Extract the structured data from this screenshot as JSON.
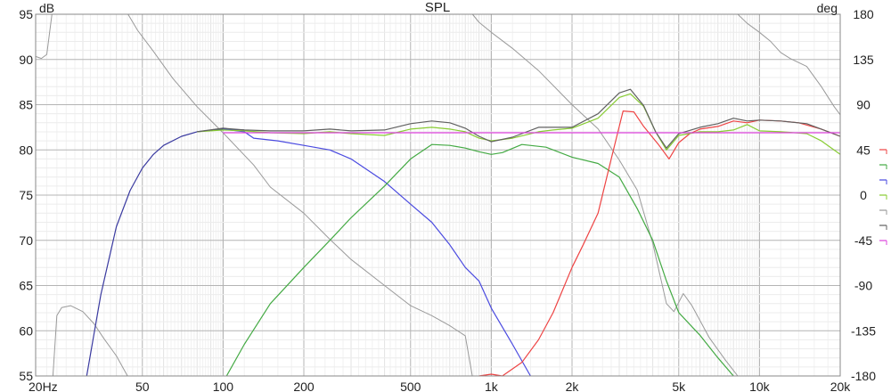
{
  "chart_data": {
    "type": "line",
    "title": "SPL",
    "ylabel_left": "dB",
    "ylabel_right": "deg",
    "x_scale": "log",
    "xlim": [
      20,
      20000
    ],
    "ylim_left": [
      55,
      95
    ],
    "ylim_right": [
      -180,
      180
    ],
    "grid": true,
    "legend_position": "right",
    "x_tick_labels": [
      {
        "v": 20,
        "t": "20Hz"
      },
      {
        "v": 50,
        "t": "50"
      },
      {
        "v": 100,
        "t": "100"
      },
      {
        "v": 200,
        "t": "200"
      },
      {
        "v": 500,
        "t": "500"
      },
      {
        "v": 1000,
        "t": "1k"
      },
      {
        "v": 2000,
        "t": "2k"
      },
      {
        "v": 5000,
        "t": "5k"
      },
      {
        "v": 10000,
        "t": "10k"
      },
      {
        "v": 20000,
        "t": "20k"
      }
    ],
    "y_left_ticks": [
      "95",
      "90",
      "85",
      "80",
      "75",
      "70",
      "65",
      "60",
      "55"
    ],
    "y_right_ticks": [
      "180",
      "135",
      "90",
      "45",
      "0",
      "-45",
      "-90",
      "-135",
      "-180"
    ],
    "series": [
      {
        "color": "#9a9a9a",
        "axis": "right",
        "points": [
          [
            20,
            138
          ],
          [
            21,
            136
          ],
          [
            22,
            140
          ],
          [
            23,
            180
          ],
          [
            23.2,
            -180
          ],
          [
            24,
            -120
          ],
          [
            25,
            -112
          ],
          [
            27,
            -110
          ],
          [
            30,
            -116
          ],
          [
            33,
            -128
          ],
          [
            36,
            -143
          ],
          [
            40,
            -160
          ],
          [
            44,
            -180
          ],
          [
            44.2,
            180
          ],
          [
            48,
            164
          ],
          [
            55,
            143
          ],
          [
            65,
            116
          ],
          [
            80,
            88
          ],
          [
            100,
            62
          ],
          [
            130,
            30
          ],
          [
            150,
            8
          ],
          [
            200,
            -18
          ],
          [
            250,
            -44
          ],
          [
            300,
            -64
          ],
          [
            400,
            -90
          ],
          [
            500,
            -110
          ],
          [
            600,
            -120
          ],
          [
            700,
            -130
          ],
          [
            800,
            -140
          ],
          [
            850,
            -180
          ],
          [
            851,
            180
          ],
          [
            900,
            172
          ],
          [
            1000,
            162
          ],
          [
            1200,
            146
          ],
          [
            1500,
            124
          ],
          [
            2000,
            90
          ],
          [
            2500,
            66
          ],
          [
            3000,
            35
          ],
          [
            3500,
            5
          ],
          [
            4000,
            -48
          ],
          [
            4500,
            -108
          ],
          [
            4800,
            -116
          ],
          [
            5200,
            -98
          ],
          [
            5600,
            -110
          ],
          [
            6500,
            -142
          ],
          [
            7500,
            -165
          ],
          [
            8300,
            -180
          ],
          [
            8301,
            180
          ],
          [
            9000,
            171
          ],
          [
            10000,
            162
          ],
          [
            11000,
            153
          ],
          [
            12000,
            142
          ],
          [
            13000,
            136
          ],
          [
            15000,
            128
          ],
          [
            17000,
            108
          ],
          [
            19000,
            88
          ],
          [
            20000,
            80
          ]
        ]
      },
      {
        "color": "#3a3aa0",
        "axis": "left",
        "points": [
          [
            31,
            55
          ],
          [
            35,
            64
          ],
          [
            40,
            71.5
          ],
          [
            45,
            75.5
          ],
          [
            50,
            78
          ],
          [
            55,
            79.5
          ],
          [
            60,
            80.5
          ],
          [
            70,
            81.5
          ],
          [
            80,
            82
          ],
          [
            100,
            82.3
          ],
          [
            120,
            82.2
          ]
        ]
      },
      {
        "color": "#4a4ae0",
        "axis": "left",
        "points": [
          [
            100,
            82.3
          ],
          [
            120,
            82
          ],
          [
            130,
            81.3
          ],
          [
            160,
            81
          ],
          [
            200,
            80.5
          ],
          [
            250,
            80
          ],
          [
            300,
            79
          ],
          [
            400,
            76.5
          ],
          [
            500,
            74
          ],
          [
            600,
            72
          ],
          [
            700,
            69.5
          ],
          [
            800,
            67
          ],
          [
            900,
            65.5
          ],
          [
            1000,
            62.5
          ],
          [
            1200,
            58.5
          ],
          [
            1400,
            55
          ]
        ]
      },
      {
        "color": "#44aa44",
        "axis": "left",
        "points": [
          [
            103,
            55
          ],
          [
            120,
            58.5
          ],
          [
            150,
            63
          ],
          [
            200,
            67
          ],
          [
            250,
            70
          ],
          [
            300,
            72.5
          ],
          [
            400,
            76
          ],
          [
            500,
            79
          ],
          [
            600,
            80.6
          ],
          [
            700,
            80.5
          ],
          [
            800,
            80.2
          ],
          [
            900,
            79.8
          ],
          [
            1000,
            79.5
          ],
          [
            1100,
            79.7
          ],
          [
            1300,
            80.6
          ],
          [
            1600,
            80.3
          ],
          [
            2000,
            79.2
          ],
          [
            2500,
            78.5
          ],
          [
            3000,
            77
          ],
          [
            3500,
            73.5
          ],
          [
            4000,
            70
          ],
          [
            4500,
            65.5
          ],
          [
            5000,
            62
          ],
          [
            6000,
            59.5
          ],
          [
            7000,
            57
          ],
          [
            8000,
            55
          ]
        ]
      },
      {
        "color": "#ee4444",
        "axis": "left",
        "points": [
          [
            900,
            55
          ],
          [
            1000,
            55.2
          ],
          [
            1100,
            55
          ],
          [
            1300,
            56.5
          ],
          [
            1500,
            59
          ],
          [
            1700,
            62
          ],
          [
            2000,
            67
          ],
          [
            2200,
            69.5
          ],
          [
            2500,
            73
          ],
          [
            2800,
            79
          ],
          [
            3100,
            84.3
          ],
          [
            3400,
            84.2
          ],
          [
            3700,
            82.6
          ],
          [
            4200,
            80.6
          ],
          [
            4600,
            79
          ],
          [
            5000,
            80.8
          ],
          [
            5500,
            81.8
          ],
          [
            6000,
            82.3
          ],
          [
            7000,
            82.6
          ],
          [
            8000,
            83.2
          ],
          [
            9000,
            83
          ],
          [
            10000,
            83.3
          ],
          [
            12000,
            83.2
          ],
          [
            14000,
            83
          ],
          [
            17000,
            82.3
          ],
          [
            20000,
            81.5
          ]
        ]
      },
      {
        "color": "#88cc33",
        "axis": "left",
        "points": [
          [
            80,
            82
          ],
          [
            100,
            82.2
          ],
          [
            120,
            82.1
          ],
          [
            150,
            81.9
          ],
          [
            200,
            81.8
          ],
          [
            250,
            82
          ],
          [
            300,
            81.8
          ],
          [
            400,
            81.6
          ],
          [
            500,
            82.3
          ],
          [
            600,
            82.5
          ],
          [
            700,
            82.3
          ],
          [
            800,
            82
          ],
          [
            900,
            81.3
          ],
          [
            1000,
            81
          ],
          [
            1200,
            81.3
          ],
          [
            1500,
            82
          ],
          [
            1700,
            82.2
          ],
          [
            2000,
            82.4
          ],
          [
            2500,
            83.5
          ],
          [
            3000,
            85.8
          ],
          [
            3300,
            86.2
          ],
          [
            3700,
            84.8
          ],
          [
            4100,
            82
          ],
          [
            4500,
            80
          ],
          [
            5000,
            81.6
          ],
          [
            6000,
            82
          ],
          [
            7000,
            82
          ],
          [
            8000,
            82.2
          ],
          [
            9000,
            82.8
          ],
          [
            10000,
            82.1
          ],
          [
            12000,
            82
          ],
          [
            15000,
            81.8
          ],
          [
            17000,
            81
          ],
          [
            20000,
            79.5
          ]
        ]
      },
      {
        "color": "#606060",
        "axis": "left",
        "points": [
          [
            80,
            82
          ],
          [
            100,
            82.4
          ],
          [
            120,
            82.2
          ],
          [
            150,
            82.1
          ],
          [
            200,
            82.1
          ],
          [
            250,
            82.3
          ],
          [
            300,
            82.1
          ],
          [
            400,
            82.2
          ],
          [
            500,
            82.9
          ],
          [
            600,
            83.2
          ],
          [
            700,
            83
          ],
          [
            800,
            82.4
          ],
          [
            900,
            81.5
          ],
          [
            1000,
            80.9
          ],
          [
            1200,
            81.4
          ],
          [
            1500,
            82.5
          ],
          [
            1700,
            82.5
          ],
          [
            2000,
            82.5
          ],
          [
            2500,
            84
          ],
          [
            3000,
            86.3
          ],
          [
            3300,
            86.7
          ],
          [
            3700,
            84.9
          ],
          [
            4100,
            82
          ],
          [
            4500,
            80.2
          ],
          [
            5000,
            81.8
          ],
          [
            6000,
            82.5
          ],
          [
            7000,
            82.9
          ],
          [
            8000,
            83.5
          ],
          [
            9000,
            83.2
          ],
          [
            10000,
            83.3
          ],
          [
            12000,
            83.2
          ],
          [
            15000,
            82.9
          ],
          [
            17000,
            82.3
          ],
          [
            20000,
            81.5
          ]
        ]
      },
      {
        "color": "#dd44dd",
        "axis": "left",
        "points": [
          [
            100,
            81.9
          ],
          [
            20000,
            81.9
          ]
        ]
      }
    ]
  }
}
